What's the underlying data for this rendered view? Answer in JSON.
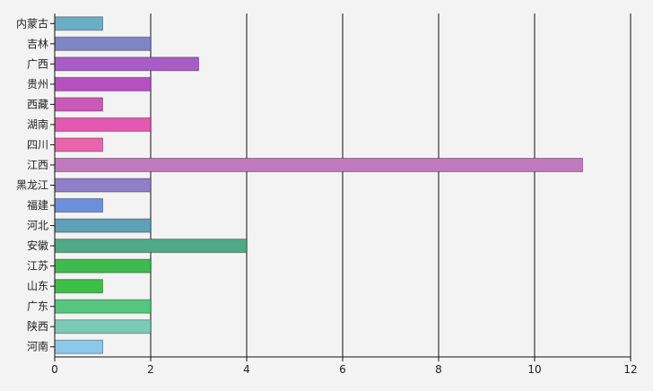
{
  "chart_data": {
    "type": "bar",
    "orientation": "horizontal",
    "categories": [
      "内蒙古",
      "吉林",
      "广西",
      "贵州",
      "西藏",
      "湖南",
      "四川",
      "江西",
      "黑龙江",
      "福建",
      "河北",
      "安徽",
      "江苏",
      "山东",
      "广东",
      "陕西",
      "河南"
    ],
    "values": [
      1,
      2,
      3,
      2,
      1,
      2,
      1,
      11,
      2,
      1,
      2,
      4,
      2,
      1,
      2,
      2,
      1
    ],
    "colors": [
      "#6aaec5",
      "#7f86c6",
      "#a75cc6",
      "#b64fbf",
      "#ca59b8",
      "#e358b0",
      "#e865ab",
      "#c079bd",
      "#8f7fc9",
      "#6b8fdc",
      "#5f9fb8",
      "#4ea987",
      "#3fba4f",
      "#3dbe45",
      "#55c67c",
      "#7bcab6",
      "#8cc8ea"
    ],
    "xlim": [
      0,
      12
    ],
    "xticks": [
      "0",
      "2",
      "4",
      "6",
      "8",
      "10",
      "12"
    ],
    "grid": "vertical",
    "legend": "none"
  }
}
